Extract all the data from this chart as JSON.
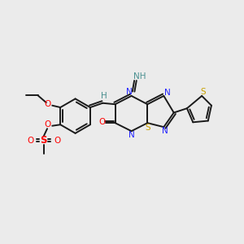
{
  "background_color": "#ebebeb",
  "bond_color": "#1a1a1a",
  "N_color": "#2020ff",
  "S_color": "#c8a000",
  "O_color": "#ff0000",
  "S_sulfonate_color": "#ff0000",
  "H_color": "#4a9090",
  "figsize": [
    3.0,
    3.0
  ],
  "dpi": 100,
  "xlim": [
    0,
    10
  ],
  "ylim": [
    0,
    10
  ]
}
